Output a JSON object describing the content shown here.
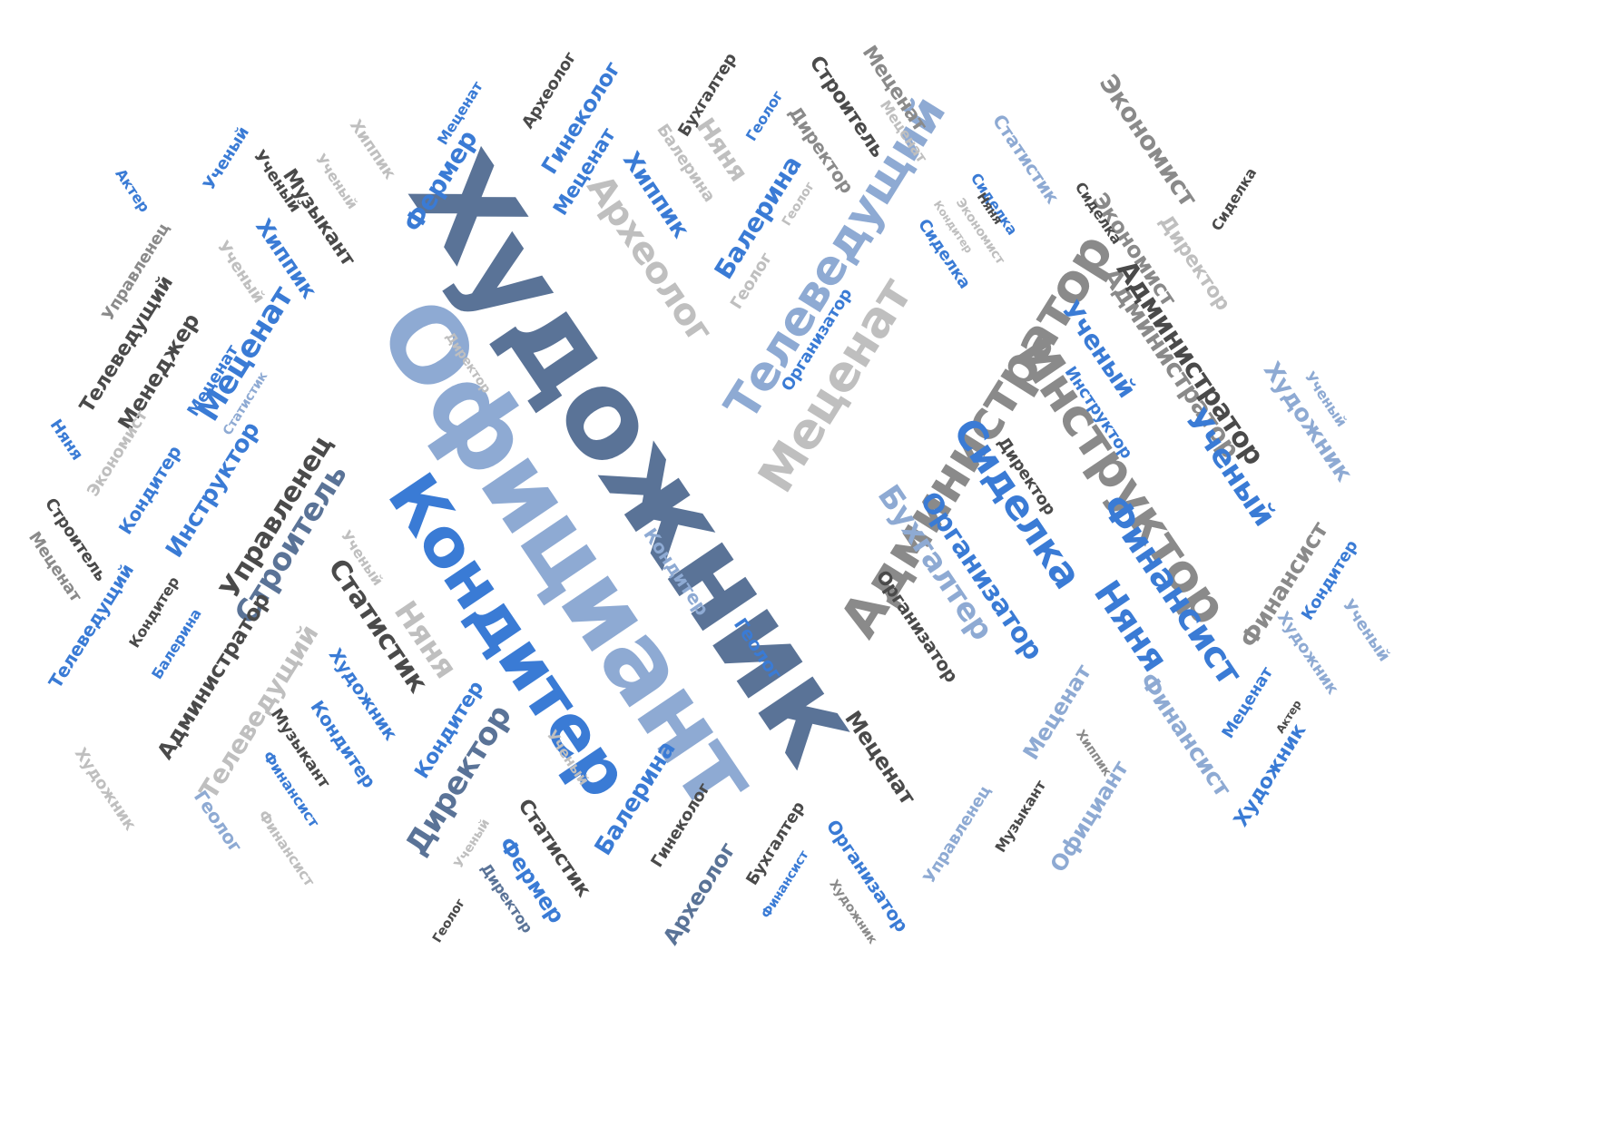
{
  "palette": {
    "slate": "#5a7397",
    "lightblue": "#8eaad3",
    "blue": "#3a7bd5",
    "darkgray": "#4a4a4a",
    "gray": "#8a8a8a",
    "lightgray": "#bfbfbf"
  },
  "words": [
    {
      "text": "Художник",
      "color": "slate"
    },
    {
      "text": "Официант",
      "color": "lightblue"
    },
    {
      "text": "Кондитер",
      "color": "blue"
    },
    {
      "text": "Администратор",
      "color": "gray"
    },
    {
      "text": "Инструктор",
      "color": "gray"
    },
    {
      "text": "Меценат",
      "color": "lightgray"
    },
    {
      "text": "Телеведущий",
      "color": "lightblue"
    },
    {
      "text": "Сиделка",
      "color": "blue"
    },
    {
      "text": "Финансист",
      "color": "blue"
    },
    {
      "text": "Няня",
      "color": "blue"
    },
    {
      "text": "Бухгалтер",
      "color": "lightblue"
    },
    {
      "text": "Организатор",
      "color": "blue"
    },
    {
      "text": "Администратор",
      "color": "gray"
    },
    {
      "text": "Экономист",
      "color": "gray"
    },
    {
      "text": "Археолог",
      "color": "lightgray"
    },
    {
      "text": "Балерина",
      "color": "blue"
    },
    {
      "text": "Хиппик",
      "color": "blue"
    },
    {
      "text": "Фермер",
      "color": "blue"
    },
    {
      "text": "Гинеколог",
      "color": "blue"
    },
    {
      "text": "Меценат",
      "color": "blue"
    },
    {
      "text": "Археолог",
      "color": "darkgray"
    },
    {
      "text": "Меценат",
      "color": "blue"
    },
    {
      "text": "Бухгалтер",
      "color": "darkgray"
    },
    {
      "text": "Геолог",
      "color": "blue"
    },
    {
      "text": "Няня",
      "color": "lightgray"
    },
    {
      "text": "Балерина",
      "color": "lightgray"
    },
    {
      "text": "Строитель",
      "color": "darkgray"
    },
    {
      "text": "Директор",
      "color": "gray"
    },
    {
      "text": "Меценат",
      "color": "gray"
    },
    {
      "text": "Статистик",
      "color": "lightblue"
    },
    {
      "text": "Экономист",
      "color": "gray"
    },
    {
      "text": "Сиделка",
      "color": "darkgray"
    },
    {
      "text": "Директор",
      "color": "lightgray"
    },
    {
      "text": "Экономист",
      "color": "lightgray"
    },
    {
      "text": "Администратор",
      "color": "darkgray"
    },
    {
      "text": "Ученый",
      "color": "blue"
    },
    {
      "text": "Инструктор",
      "color": "blue"
    },
    {
      "text": "Ученый",
      "color": "blue"
    },
    {
      "text": "Художник",
      "color": "lightblue"
    },
    {
      "text": "Ученый",
      "color": "lightblue"
    },
    {
      "text": "Директор",
      "color": "darkgray"
    },
    {
      "text": "Сиделка",
      "color": "blue"
    },
    {
      "text": "Организатор",
      "color": "blue"
    },
    {
      "text": "Сиделка",
      "color": "blue"
    },
    {
      "text": "Геолог",
      "color": "lightgray"
    },
    {
      "text": "Геолог",
      "color": "lightgray"
    },
    {
      "text": "Ученый",
      "color": "blue"
    },
    {
      "text": "Ученый",
      "color": "darkgray"
    },
    {
      "text": "Актер",
      "color": "blue"
    },
    {
      "text": "Хиппик",
      "color": "lightgray"
    },
    {
      "text": "Меценат",
      "color": "blue"
    },
    {
      "text": "Музыкант",
      "color": "darkgray"
    },
    {
      "text": "Ученый",
      "color": "lightgray"
    },
    {
      "text": "Управленец",
      "color": "gray"
    },
    {
      "text": "Ученый",
      "color": "lightgray"
    },
    {
      "text": "Хиппик",
      "color": "blue"
    },
    {
      "text": "Телеведущий",
      "color": "darkgray"
    },
    {
      "text": "Менеджер",
      "color": "darkgray"
    },
    {
      "text": "Меценат",
      "color": "blue"
    },
    {
      "text": "Статистик",
      "color": "lightblue"
    },
    {
      "text": "Директор",
      "color": "lightgray"
    },
    {
      "text": "Няня",
      "color": "blue"
    },
    {
      "text": "Экономист",
      "color": "lightgray"
    },
    {
      "text": "Кондитер",
      "color": "blue"
    },
    {
      "text": "Инструктор",
      "color": "blue"
    },
    {
      "text": "Управленец",
      "color": "darkgray"
    },
    {
      "text": "Строитель",
      "color": "darkgray"
    },
    {
      "text": "Меценат",
      "color": "gray"
    },
    {
      "text": "Телеведущий",
      "color": "blue"
    },
    {
      "text": "Кондитер",
      "color": "darkgray"
    },
    {
      "text": "Строитель",
      "color": "slate"
    },
    {
      "text": "Ученый",
      "color": "lightgray"
    },
    {
      "text": "Статистик",
      "color": "darkgray"
    },
    {
      "text": "Няня",
      "color": "lightgray"
    },
    {
      "text": "Балерина",
      "color": "blue"
    },
    {
      "text": "Администратор",
      "color": "darkgray"
    },
    {
      "text": "Телеведущий",
      "color": "lightgray"
    },
    {
      "text": "Художник",
      "color": "blue"
    },
    {
      "text": "Кондитер",
      "color": "blue"
    },
    {
      "text": "Кондитер",
      "color": "blue"
    },
    {
      "text": "Директор",
      "color": "slate"
    },
    {
      "text": "Музыкант",
      "color": "darkgray"
    },
    {
      "text": "Финансист",
      "color": "blue"
    },
    {
      "text": "Художник",
      "color": "lightgray"
    },
    {
      "text": "Геолог",
      "color": "lightblue"
    },
    {
      "text": "Финансист",
      "color": "lightgray"
    },
    {
      "text": "Ученый",
      "color": "lightgray"
    },
    {
      "text": "Кондитер",
      "color": "lightblue"
    },
    {
      "text": "Геолог",
      "color": "blue"
    },
    {
      "text": "Балерина",
      "color": "blue"
    },
    {
      "text": "Статистик",
      "color": "darkgray"
    },
    {
      "text": "Фермер",
      "color": "blue"
    },
    {
      "text": "Ученый",
      "color": "lightgray"
    },
    {
      "text": "Директор",
      "color": "slate"
    },
    {
      "text": "Геолог",
      "color": "darkgray"
    },
    {
      "text": "Гинеколог",
      "color": "darkgray"
    },
    {
      "text": "Бухгалтер",
      "color": "darkgray"
    },
    {
      "text": "Археолог",
      "color": "slate"
    },
    {
      "text": "Организатор",
      "color": "blue"
    },
    {
      "text": "Финансист",
      "color": "blue"
    },
    {
      "text": "Художник",
      "color": "gray"
    },
    {
      "text": "Меценат",
      "color": "darkgray"
    },
    {
      "text": "Управленец",
      "color": "lightblue"
    },
    {
      "text": "Музыкант",
      "color": "darkgray"
    },
    {
      "text": "Официант",
      "color": "lightblue"
    },
    {
      "text": "Меценат",
      "color": "lightblue"
    },
    {
      "text": "Хиппик",
      "color": "gray"
    },
    {
      "text": "Финансист",
      "color": "lightblue"
    },
    {
      "text": "Меценат",
      "color": "blue"
    },
    {
      "text": "Актер",
      "color": "darkgray"
    },
    {
      "text": "Художник",
      "color": "blue"
    },
    {
      "text": "Финансист",
      "color": "gray"
    },
    {
      "text": "Кондитер",
      "color": "blue"
    },
    {
      "text": "Художник",
      "color": "lightblue"
    },
    {
      "text": "Ученый",
      "color": "lightblue"
    },
    {
      "text": "Сиделка",
      "color": "darkgray"
    },
    {
      "text": "Няня",
      "color": "darkgray"
    },
    {
      "text": "Кондитер",
      "color": "lightgray"
    },
    {
      "text": "Меценат",
      "color": "lightgray"
    },
    {
      "text": "Организатор",
      "color": "darkgray"
    }
  ]
}
